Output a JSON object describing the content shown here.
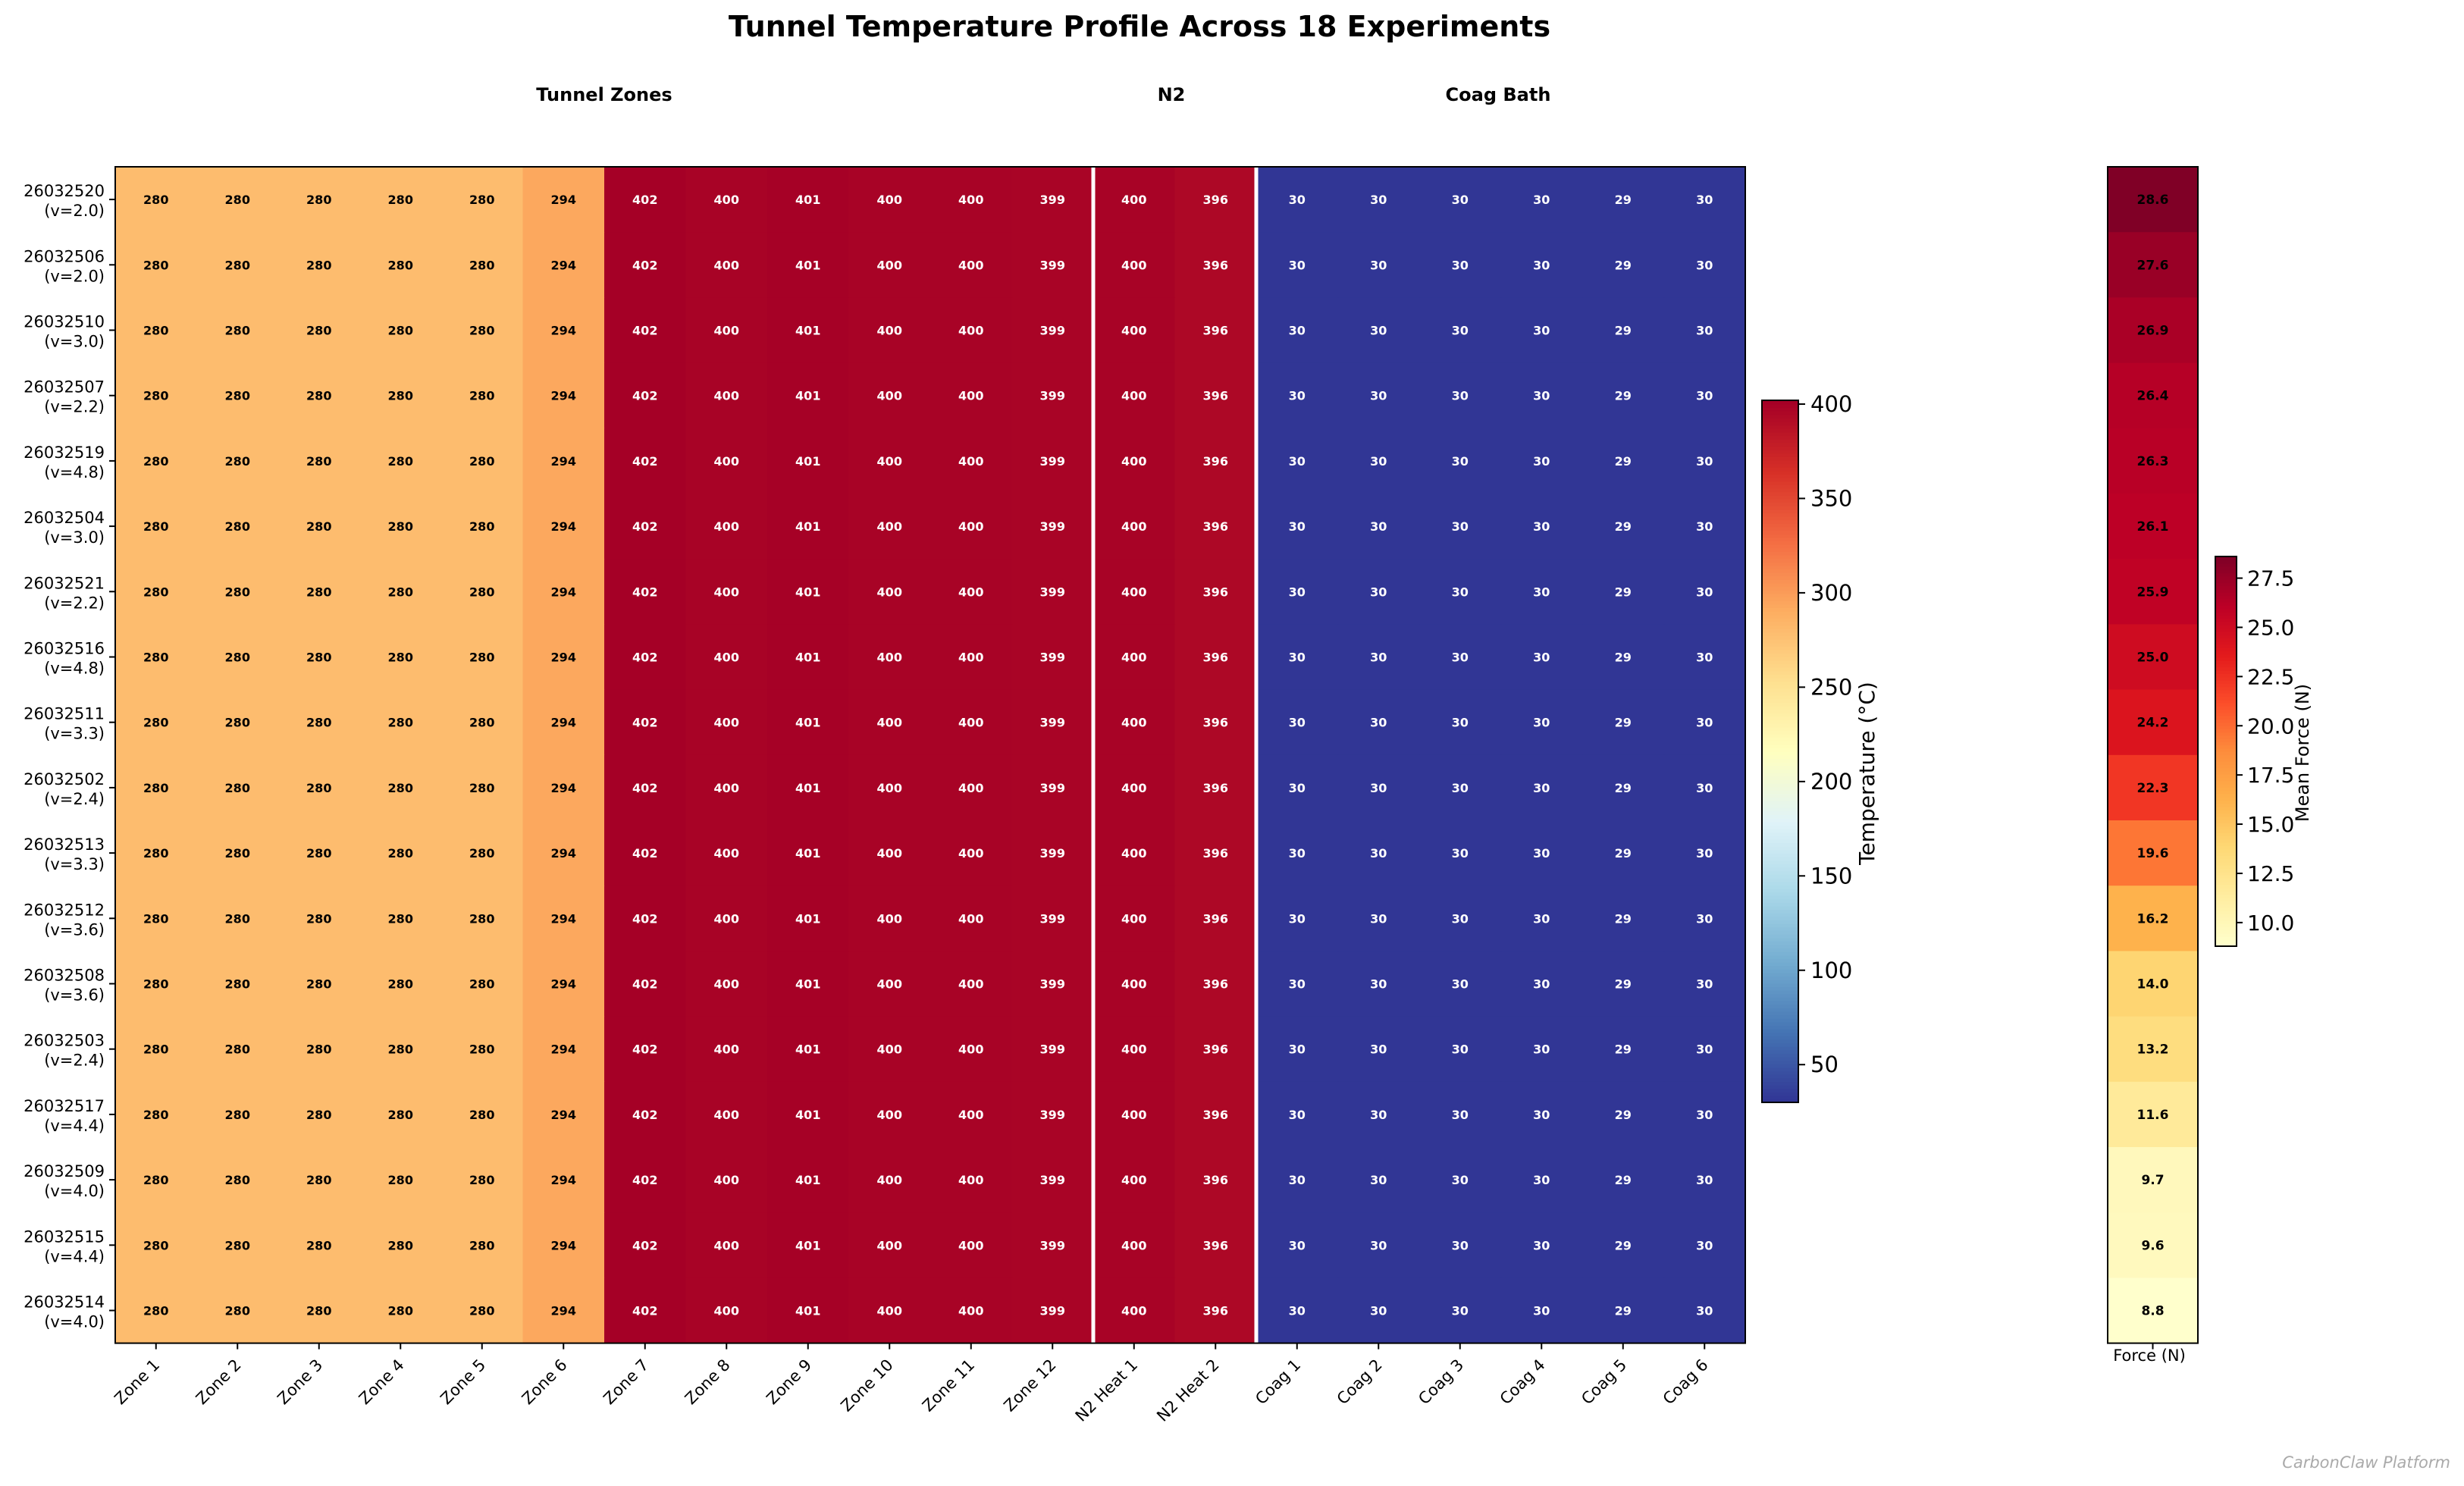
{
  "chart_data": [
    {
      "type": "heatmap",
      "title": "Tunnel Temperature Profile Across 18 Experiments",
      "group_labels": [
        "Tunnel Zones",
        "N2",
        "Coag Bath"
      ],
      "columns": [
        "Zone 1",
        "Zone 2",
        "Zone 3",
        "Zone 4",
        "Zone 5",
        "Zone 6",
        "Zone 7",
        "Zone 8",
        "Zone 9",
        "Zone 10",
        "Zone 11",
        "Zone 12",
        "N2 Heat 1",
        "N2 Heat 2",
        "Coag 1",
        "Coag 2",
        "Coag 3",
        "Coag 4",
        "Coag 5",
        "Coag 6"
      ],
      "rows": [
        {
          "id": "26032520",
          "v": "(v=2.0)"
        },
        {
          "id": "26032506",
          "v": "(v=2.0)"
        },
        {
          "id": "26032510",
          "v": "(v=3.0)"
        },
        {
          "id": "26032507",
          "v": "(v=2.2)"
        },
        {
          "id": "26032519",
          "v": "(v=4.8)"
        },
        {
          "id": "26032504",
          "v": "(v=3.0)"
        },
        {
          "id": "26032521",
          "v": "(v=2.2)"
        },
        {
          "id": "26032516",
          "v": "(v=4.8)"
        },
        {
          "id": "26032511",
          "v": "(v=3.3)"
        },
        {
          "id": "26032502",
          "v": "(v=2.4)"
        },
        {
          "id": "26032513",
          "v": "(v=3.3)"
        },
        {
          "id": "26032512",
          "v": "(v=3.6)"
        },
        {
          "id": "26032508",
          "v": "(v=3.6)"
        },
        {
          "id": "26032503",
          "v": "(v=2.4)"
        },
        {
          "id": "26032517",
          "v": "(v=4.4)"
        },
        {
          "id": "26032509",
          "v": "(v=4.0)"
        },
        {
          "id": "26032515",
          "v": "(v=4.4)"
        },
        {
          "id": "26032514",
          "v": "(v=4.0)"
        }
      ],
      "row_values": [
        280,
        280,
        280,
        280,
        280,
        294,
        402,
        400,
        401,
        400,
        400,
        399,
        400,
        396,
        30,
        30,
        30,
        30,
        29,
        30
      ],
      "colorbar": {
        "label": "Temperature (°C)",
        "min": 30,
        "max": 402,
        "ticks": [
          50,
          100,
          150,
          200,
          250,
          300,
          350,
          400
        ]
      }
    },
    {
      "type": "heatmap",
      "xlabel": "Force (N)",
      "values": [
        28.6,
        27.6,
        26.9,
        26.4,
        26.3,
        26.1,
        25.9,
        25.0,
        24.2,
        22.3,
        19.6,
        16.2,
        14.0,
        13.2,
        11.6,
        9.7,
        9.6,
        8.8
      ],
      "colorbar": {
        "label": "Mean Force (N)",
        "min": 8.8,
        "max": 28.6,
        "ticks": [
          10.0,
          12.5,
          15.0,
          17.5,
          20.0,
          22.5,
          25.0,
          27.5
        ]
      }
    }
  ],
  "footer": {
    "watermark": "CarbonClaw Platform"
  },
  "colors": {
    "ylorrd": [
      "#ffffcc",
      "#ffeda0",
      "#fed976",
      "#feb24c",
      "#fd8d3c",
      "#fc4e2a",
      "#e31a1c",
      "#bd0026",
      "#800026"
    ],
    "rdylbu_r": [
      "#313695",
      "#4575b4",
      "#74add1",
      "#abd9e9",
      "#e0f3f8",
      "#ffffbf",
      "#fee090",
      "#fdae61",
      "#f46d43",
      "#d73027",
      "#a50026"
    ]
  }
}
